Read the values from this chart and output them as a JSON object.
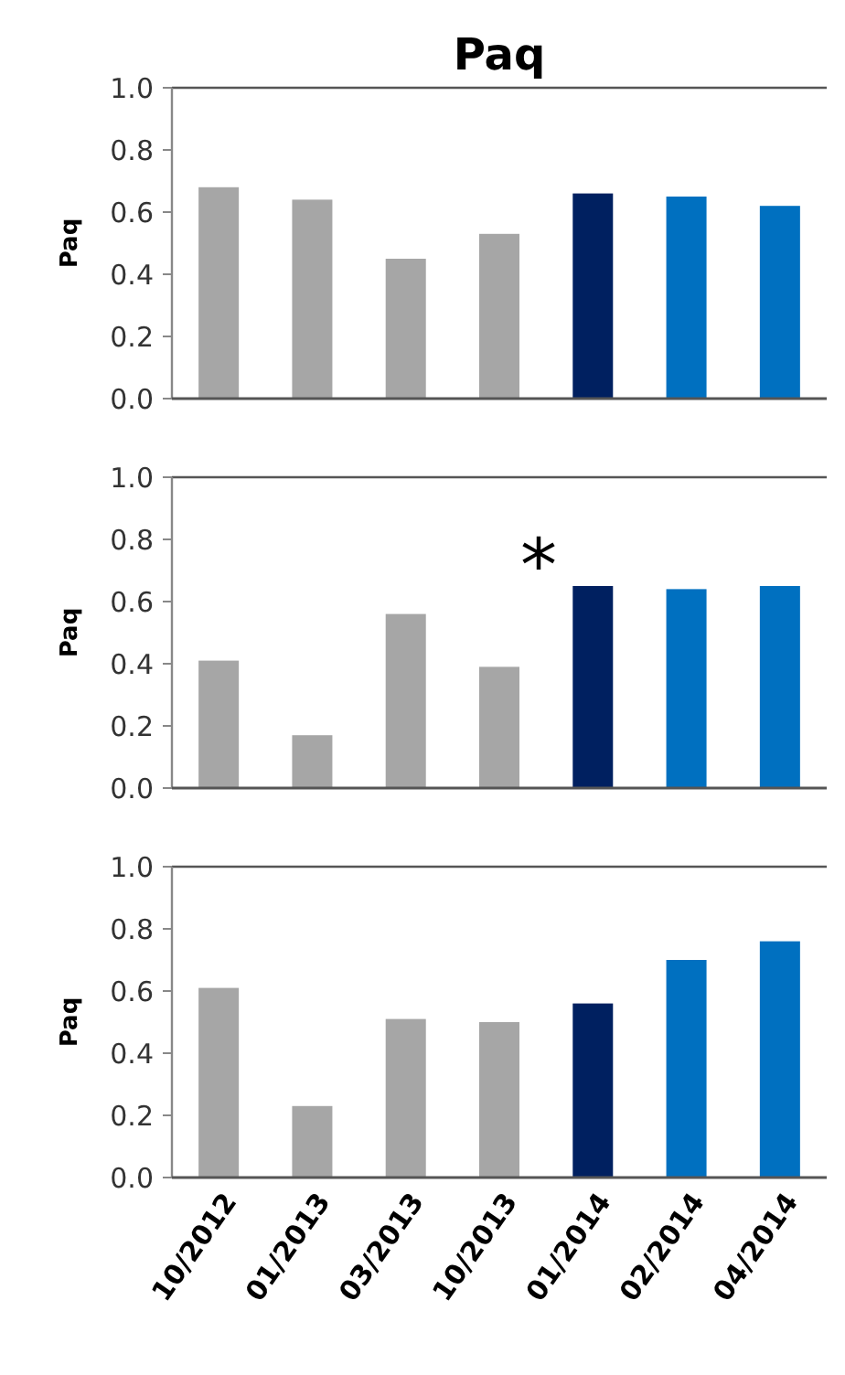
{
  "chart_data": [
    {
      "type": "bar",
      "title": "Paq",
      "ylabel": "Paq",
      "categories": [
        null,
        null,
        null,
        null,
        null,
        null,
        null
      ],
      "values": [
        0.68,
        0.64,
        0.45,
        0.53,
        0.66,
        0.65,
        0.62
      ],
      "colors": [
        "#a6a6a6",
        "#a6a6a6",
        "#a6a6a6",
        "#a6a6a6",
        "#002060",
        "#0070c0",
        "#0070c0"
      ],
      "ylim": [
        0,
        1
      ],
      "yticks": [
        {
          "value": 0,
          "label": "0.0"
        },
        {
          "value": 0.2,
          "label": "0.2"
        },
        {
          "value": 0.4,
          "label": "0.4"
        },
        {
          "value": 0.6,
          "label": "0.6"
        },
        {
          "value": 0.8,
          "label": "0.8"
        },
        {
          "value": 1,
          "label": "1.0"
        }
      ],
      "tick_labels": "y"
    },
    {
      "type": "bar",
      "ylabel": "Paq",
      "categories": [
        null,
        null,
        null,
        null,
        null,
        null,
        null
      ],
      "values": [
        0.41,
        0.17,
        0.56,
        0.39,
        0.65,
        0.64,
        0.65
      ],
      "colors": [
        "#a6a6a6",
        "#a6a6a6",
        "#a6a6a6",
        "#a6a6a6",
        "#002060",
        "#0070c0",
        "#0070c0"
      ],
      "ylim": [
        0,
        1
      ],
      "yticks": [
        {
          "value": 0,
          "label": "0.0"
        },
        {
          "value": 0.2,
          "label": "0.2"
        },
        {
          "value": 0.4,
          "label": "0.4"
        },
        {
          "value": 0.6,
          "label": "0.6"
        },
        {
          "value": 0.8,
          "label": "0.8"
        },
        {
          "value": 1,
          "label": "1.0"
        }
      ],
      "tick_labels": "y",
      "annotations": [
        "*"
      ]
    },
    {
      "type": "bar",
      "ylabel": "Paq",
      "categories": [
        "10/2012",
        "01/2013",
        "03/2013",
        "10/2013",
        "01/2014",
        "02/2014",
        "04/2014"
      ],
      "values": [
        0.61,
        0.23,
        0.51,
        0.5,
        0.56,
        0.7,
        0.76
      ],
      "colors": [
        "#a6a6a6",
        "#a6a6a6",
        "#a6a6a6",
        "#a6a6a6",
        "#002060",
        "#0070c0",
        "#0070c0"
      ],
      "ylim": [
        0,
        1
      ],
      "yticks": [
        {
          "value": 0,
          "label": "0.0"
        },
        {
          "value": 0.2,
          "label": "0.2"
        },
        {
          "value": 0.4,
          "label": "0.4"
        },
        {
          "value": 0.6,
          "label": "0.6"
        },
        {
          "value": 0.8,
          "label": "0.8"
        },
        {
          "value": 1,
          "label": "1.0"
        }
      ]
    }
  ]
}
